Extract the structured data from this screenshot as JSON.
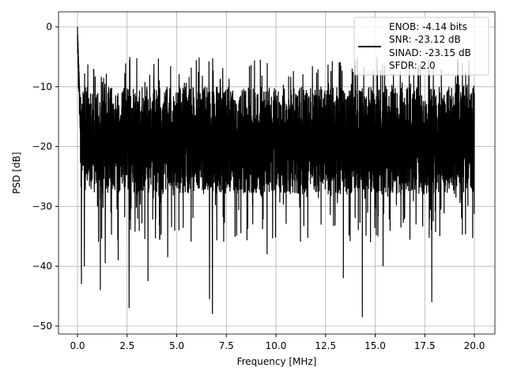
{
  "chart_data": {
    "type": "line",
    "xlabel": "Frequency [MHz]",
    "ylabel": "PSD [dB]",
    "xlim": [
      -1,
      21
    ],
    "ylim": [
      -51,
      2.5
    ],
    "xticks": [
      "0.0",
      "2.5",
      "5.0",
      "7.5",
      "10.0",
      "12.5",
      "15.0",
      "17.5",
      "20.0"
    ],
    "xtick_values": [
      0,
      2.5,
      5,
      7.5,
      10,
      12.5,
      15,
      17.5,
      20
    ],
    "yticks": [
      "0",
      "−10",
      "−20",
      "−30",
      "−40",
      "−50"
    ],
    "ytick_values": [
      0,
      -10,
      -20,
      -30,
      -40,
      -50
    ],
    "grid": true,
    "legend": {
      "placement": "top-right",
      "entries": [
        "ENOB: -4.14 bits",
        "SNR: -23.12 dB",
        "SINAD: -23.15 dB",
        "SFDR: 2.0"
      ]
    },
    "series": [
      {
        "name": "PSD",
        "color": "#000000",
        "x_range": [
          0,
          20
        ],
        "start_value": 0,
        "noise_band": [
          -30,
          -10
        ],
        "upper_peak": -5,
        "deep_minima": [
          [
            0.2,
            -43
          ],
          [
            0.35,
            -40
          ],
          [
            1.15,
            -44
          ],
          [
            1.4,
            -39.5
          ],
          [
            2.05,
            -39
          ],
          [
            2.6,
            -47
          ],
          [
            3.55,
            -42.5
          ],
          [
            4.55,
            -38.5
          ],
          [
            6.65,
            -45.5
          ],
          [
            6.8,
            -48
          ],
          [
            9.55,
            -38
          ],
          [
            13.4,
            -42
          ],
          [
            14.35,
            -48.5
          ],
          [
            15.4,
            -40
          ],
          [
            17.85,
            -46
          ]
        ]
      }
    ]
  }
}
